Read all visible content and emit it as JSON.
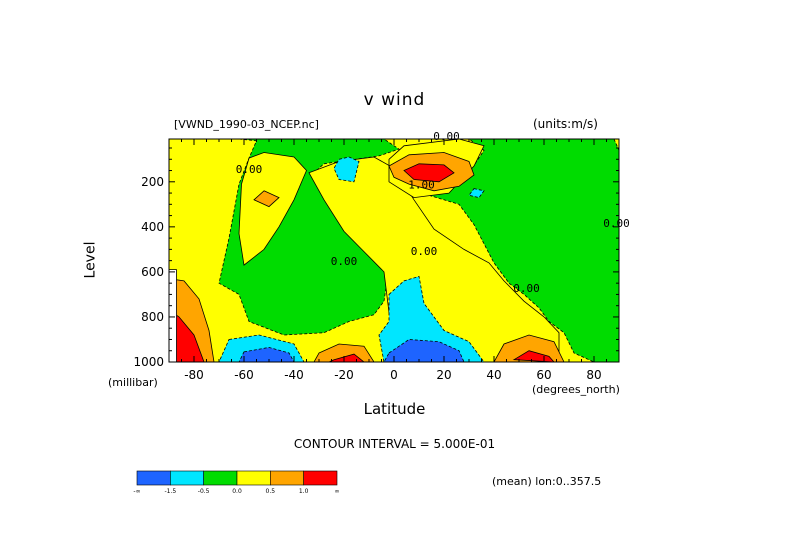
{
  "chart_data": {
    "type": "contour",
    "title": "v wind",
    "dataset_label": "[VWND_1990-03_NCEP.nc]",
    "units_label": "(units:m/s)",
    "xlabel": "Latitude",
    "x_units": "(degrees_north)",
    "ylabel": "Level",
    "y_units": "(millibar)",
    "xlim": [
      -90,
      90
    ],
    "ylim": [
      1000,
      10
    ],
    "x_ticks": [
      -80,
      -60,
      -40,
      -20,
      0,
      20,
      40,
      60,
      80
    ],
    "y_ticks": [
      200,
      400,
      600,
      800,
      1000
    ],
    "contour_interval_label": "CONTOUR INTERVAL = 5.000E-01",
    "footer_label": "(mean) lon:0..357.5",
    "contour_labels": [
      {
        "text": "0.00",
        "lat": 21,
        "level": 15
      },
      {
        "text": "0.00",
        "lat": -58,
        "level": 160
      },
      {
        "text": "1.00",
        "lat": 11,
        "level": 230
      },
      {
        "text": "0.00",
        "lat": -20,
        "level": 570
      },
      {
        "text": "0.00",
        "lat": 12,
        "level": 525
      },
      {
        "text": "0.00",
        "lat": 53,
        "level": 690
      },
      {
        "text": "0.00",
        "lat": 89,
        "level": 400
      }
    ],
    "colorbar": {
      "colors": [
        "#1e64ff",
        "#00e6ff",
        "#00dc00",
        "#ffff00",
        "#ffa500",
        "#ff0000"
      ],
      "labels": [
        "-∞",
        "-1.5",
        "-0.5",
        "0.0",
        "0.5",
        "1.0",
        "∞"
      ]
    },
    "regions": [
      {
        "level": "-0.5..0",
        "color": "#00dc00",
        "poly": [
          [
            -90,
            10
          ],
          [
            -62,
            10
          ],
          [
            -55,
            18
          ],
          [
            -58,
            95
          ],
          [
            -62,
            210
          ],
          [
            -66,
            450
          ],
          [
            -70,
            650
          ],
          [
            -62,
            700
          ],
          [
            -58,
            820
          ],
          [
            -44,
            880
          ],
          [
            -28,
            870
          ],
          [
            -18,
            820
          ],
          [
            -8,
            790
          ],
          [
            -4,
            730
          ],
          [
            -2,
            580
          ],
          [
            -10,
            520
          ],
          [
            -16,
            430
          ],
          [
            -24,
            270
          ],
          [
            -32,
            160
          ],
          [
            -28,
            120
          ],
          [
            -6,
            85
          ],
          [
            2,
            55
          ],
          [
            -4,
            10
          ],
          [
            -90,
            10
          ]
        ]
      },
      {
        "level": "-0.5..0",
        "color": "#00dc00",
        "poly": [
          [
            30,
            10
          ],
          [
            88,
            10
          ],
          [
            90,
            60
          ],
          [
            90,
            1000
          ],
          [
            80,
            1000
          ],
          [
            72,
            960
          ],
          [
            68,
            870
          ],
          [
            62,
            820
          ],
          [
            58,
            760
          ],
          [
            52,
            700
          ],
          [
            46,
            650
          ],
          [
            40,
            560
          ],
          [
            32,
            390
          ],
          [
            26,
            300
          ],
          [
            14,
            260
          ],
          [
            30,
            160
          ],
          [
            36,
            60
          ]
        ]
      },
      {
        "level": "0..0.5",
        "color": "#ffff00",
        "poly": [
          [
            -58,
            95
          ],
          [
            -52,
            70
          ],
          [
            -40,
            90
          ],
          [
            -35,
            150
          ],
          [
            -40,
            280
          ],
          [
            -46,
            400
          ],
          [
            -52,
            500
          ],
          [
            -60,
            570
          ],
          [
            -62,
            430
          ],
          [
            -61,
            210
          ]
        ]
      },
      {
        "level": "0..0.5",
        "color": "#ffff00",
        "poly": [
          [
            -34,
            160
          ],
          [
            -22,
            110
          ],
          [
            -8,
            90
          ],
          [
            0,
            140
          ],
          [
            8,
            280
          ],
          [
            16,
            410
          ],
          [
            28,
            500
          ],
          [
            38,
            560
          ],
          [
            44,
            640
          ],
          [
            52,
            730
          ],
          [
            60,
            800
          ],
          [
            66,
            870
          ],
          [
            66,
            1000
          ],
          [
            10,
            1000
          ],
          [
            4,
            930
          ],
          [
            -2,
            780
          ],
          [
            -4,
            600
          ],
          [
            -12,
            510
          ],
          [
            -20,
            420
          ],
          [
            -28,
            280
          ]
        ]
      },
      {
        "level": "0..0.5",
        "color": "#ffff00",
        "poly": [
          [
            26,
            10
          ],
          [
            36,
            40
          ],
          [
            32,
            130
          ],
          [
            22,
            250
          ],
          [
            8,
            270
          ],
          [
            -2,
            200
          ],
          [
            -2,
            100
          ],
          [
            4,
            40
          ]
        ]
      },
      {
        "level": "-1.0..-0.5",
        "color": "#00e6ff",
        "poly": [
          [
            -22,
            100
          ],
          [
            -18,
            90
          ],
          [
            -14,
            110
          ],
          [
            -16,
            200
          ],
          [
            -22,
            190
          ],
          [
            -24,
            140
          ]
        ]
      },
      {
        "level": "-1.0..-0.5",
        "color": "#00e6ff",
        "poly": [
          [
            -2,
            700
          ],
          [
            4,
            640
          ],
          [
            10,
            620
          ],
          [
            12,
            740
          ],
          [
            20,
            860
          ],
          [
            30,
            910
          ],
          [
            36,
            1000
          ],
          [
            -4,
            1000
          ],
          [
            -6,
            880
          ],
          [
            -2,
            820
          ]
        ]
      },
      {
        "level": "-1.0..-0.5",
        "color": "#00e6ff",
        "poly": [
          [
            -66,
            900
          ],
          [
            -54,
            880
          ],
          [
            -40,
            920
          ],
          [
            -36,
            1000
          ],
          [
            -70,
            1000
          ]
        ]
      },
      {
        "level": "-1.0..-0.5",
        "color": "#00e6ff",
        "poly": [
          [
            20,
            185
          ],
          [
            24,
            190
          ],
          [
            22,
            210
          ],
          [
            18,
            200
          ]
        ]
      },
      {
        "level": "-1.0..-0.5",
        "color": "#00e6ff",
        "poly": [
          [
            32,
            230
          ],
          [
            36,
            240
          ],
          [
            34,
            270
          ],
          [
            30,
            260
          ]
        ]
      },
      {
        "level": "<-1.5",
        "color": "#1e64ff",
        "poly": [
          [
            -60,
            955
          ],
          [
            -50,
            935
          ],
          [
            -42,
            960
          ],
          [
            -40,
            1000
          ],
          [
            -62,
            1000
          ]
        ]
      },
      {
        "level": "<-1.5",
        "color": "#1e64ff",
        "poly": [
          [
            -2,
            960
          ],
          [
            6,
            900
          ],
          [
            18,
            910
          ],
          [
            26,
            950
          ],
          [
            28,
            1000
          ],
          [
            -4,
            1000
          ]
        ]
      },
      {
        "level": "0.5..1.0",
        "color": "#ffa500",
        "poly": [
          [
            -2,
            130
          ],
          [
            6,
            80
          ],
          [
            20,
            70
          ],
          [
            30,
            110
          ],
          [
            32,
            170
          ],
          [
            26,
            220
          ],
          [
            16,
            240
          ],
          [
            6,
            210
          ],
          [
            0,
            180
          ]
        ]
      },
      {
        "level": "0.5..1.0",
        "color": "#ffa500",
        "poly": [
          [
            -30,
            960
          ],
          [
            -22,
            920
          ],
          [
            -12,
            930
          ],
          [
            -8,
            1000
          ],
          [
            -32,
            1000
          ]
        ]
      },
      {
        "level": "0.5..1.0",
        "color": "#ffa500",
        "poly": [
          [
            40,
            1000
          ],
          [
            44,
            920
          ],
          [
            54,
            880
          ],
          [
            64,
            910
          ],
          [
            68,
            1000
          ]
        ]
      },
      {
        "level": "0.5..1.0",
        "color": "#ffa500",
        "poly": [
          [
            -90,
            630
          ],
          [
            -84,
            640
          ],
          [
            -78,
            720
          ],
          [
            -74,
            860
          ],
          [
            -72,
            1000
          ],
          [
            -90,
            1000
          ]
        ]
      },
      {
        "level": "0.5..1.0",
        "color": "#ffa500",
        "poly": [
          [
            -52,
            240
          ],
          [
            -46,
            270
          ],
          [
            -50,
            310
          ],
          [
            -56,
            280
          ]
        ]
      },
      {
        "level": ">1.0",
        "color": "#ff0000",
        "poly": [
          [
            4,
            150
          ],
          [
            10,
            120
          ],
          [
            20,
            125
          ],
          [
            24,
            160
          ],
          [
            18,
            200
          ],
          [
            8,
            190
          ]
        ]
      },
      {
        "level": ">1.0",
        "color": "#ff0000",
        "poly": [
          [
            -24,
            990
          ],
          [
            -16,
            965
          ],
          [
            -12,
            1000
          ],
          [
            -26,
            1000
          ]
        ]
      },
      {
        "level": ">1.0",
        "color": "#ff0000",
        "poly": [
          [
            48,
            990
          ],
          [
            54,
            950
          ],
          [
            62,
            975
          ],
          [
            64,
            1000
          ]
        ]
      },
      {
        "level": ">1.0",
        "color": "#ff0000",
        "poly": [
          [
            -90,
            770
          ],
          [
            -86,
            800
          ],
          [
            -80,
            880
          ],
          [
            -76,
            1000
          ],
          [
            -90,
            1000
          ]
        ]
      },
      {
        "level": "undefined",
        "color": "#ffffff",
        "poly": [
          [
            -90,
            590
          ],
          [
            -87,
            590
          ],
          [
            -87,
            1000
          ],
          [
            -90,
            1000
          ]
        ]
      }
    ]
  }
}
